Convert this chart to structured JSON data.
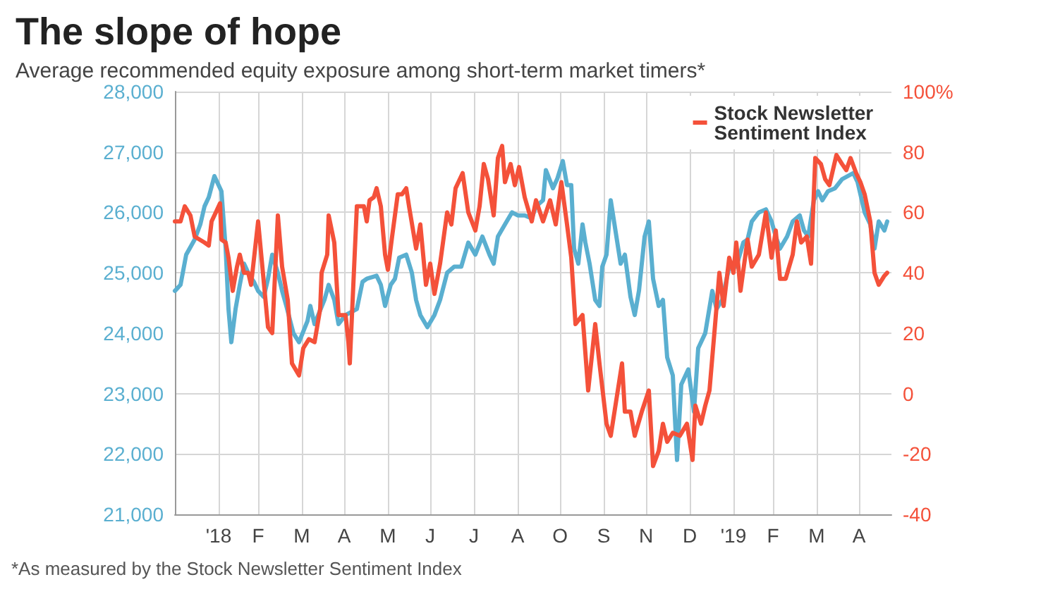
{
  "chart_data": {
    "type": "line",
    "title": "The slope of hope",
    "subtitle": "Average recommended equity exposure among short-term market timers*",
    "xlim": [
      "2018-01-01",
      "2019-05-24"
    ],
    "xticks": [
      {
        "value": "2018-02-01",
        "label": "'18"
      },
      {
        "value": "2018-03-01",
        "label": "F"
      },
      {
        "value": "2018-04-01",
        "label": "M"
      },
      {
        "value": "2018-05-01",
        "label": "A"
      },
      {
        "value": "2018-06-01",
        "label": "M"
      },
      {
        "value": "2018-07-01",
        "label": "J"
      },
      {
        "value": "2018-08-01",
        "label": "J"
      },
      {
        "value": "2018-09-01",
        "label": "A"
      },
      {
        "value": "2018-10-01",
        "label": "O"
      },
      {
        "value": "2018-11-01",
        "label": "S"
      },
      {
        "value": "2018-12-01",
        "label": "N"
      },
      {
        "value": "2019-01-01",
        "label": "D"
      },
      {
        "value": "2019-02-01",
        "label": "'19"
      },
      {
        "value": "2019-03-01",
        "label": "F"
      },
      {
        "value": "2019-04-01",
        "label": "M"
      },
      {
        "value": "2019-05-01",
        "label": "A"
      }
    ],
    "ylim": [
      21000,
      28000
    ],
    "yticks": [
      {
        "value": 21000,
        "label": "21,000"
      },
      {
        "value": 22000,
        "label": "22,000"
      },
      {
        "value": 23000,
        "label": "23,000"
      },
      {
        "value": 24000,
        "label": "24,000"
      },
      {
        "value": 25000,
        "label": "25,000"
      },
      {
        "value": 26000,
        "label": "26,000"
      },
      {
        "value": 27000,
        "label": "27,000"
      },
      {
        "value": 28000,
        "label": "28,000"
      }
    ],
    "y2lim": [
      -40,
      100
    ],
    "y2ticks": [
      -40,
      -20,
      0,
      20,
      40,
      60,
      80,
      {
        "value": 100,
        "label": "100%"
      }
    ],
    "grid": true,
    "legend": "top right",
    "marker": "none",
    "line_style": "solid",
    "annotations": [
      "*As measured by the Stock Newsletter Sentiment Index"
    ],
    "series": [
      {
        "color": "#5aafd0",
        "x": [
          "2018-01-01",
          "2018-01-05",
          "2018-01-09",
          "2018-01-15",
          "2018-01-19",
          "2018-01-22",
          "2018-01-25",
          "2018-01-29",
          "2018-02-03",
          "2018-02-06",
          "2018-02-08",
          "2018-02-10",
          "2018-02-13",
          "2018-02-16",
          "2018-02-19",
          "2018-02-23",
          "2018-02-26",
          "2018-03-01",
          "2018-03-05",
          "2018-03-08",
          "2018-03-11",
          "2018-03-15",
          "2018-03-18",
          "2018-03-21",
          "2018-03-26",
          "2018-03-30",
          "2018-04-05",
          "2018-04-07",
          "2018-04-10",
          "2018-04-17",
          "2018-04-20",
          "2018-04-24",
          "2018-04-27",
          "2018-05-02",
          "2018-05-10",
          "2018-05-14",
          "2018-05-17",
          "2018-05-24",
          "2018-05-27",
          "2018-05-30",
          "2018-06-03",
          "2018-06-06",
          "2018-06-09",
          "2018-06-14",
          "2018-06-18",
          "2018-06-21",
          "2018-06-24",
          "2018-06-29",
          "2018-07-04",
          "2018-07-08",
          "2018-07-13",
          "2018-07-18",
          "2018-07-23",
          "2018-07-28",
          "2018-08-02",
          "2018-08-07",
          "2018-08-12",
          "2018-08-15",
          "2018-08-18",
          "2018-08-23",
          "2018-08-28",
          "2018-09-01",
          "2018-09-06",
          "2018-09-11",
          "2018-09-14",
          "2018-09-19",
          "2018-09-21",
          "2018-09-26",
          "2018-09-29",
          "2018-10-03",
          "2018-10-06",
          "2018-10-09",
          "2018-10-11",
          "2018-10-14",
          "2018-10-17",
          "2018-10-19",
          "2018-10-22",
          "2018-10-26",
          "2018-10-29",
          "2018-10-31",
          "2018-11-03",
          "2018-11-06",
          "2018-11-10",
          "2018-11-13",
          "2018-11-16",
          "2018-11-20",
          "2018-11-23",
          "2018-11-26",
          "2018-11-30",
          "2018-12-03",
          "2018-12-06",
          "2018-12-10",
          "2018-12-13",
          "2018-12-16",
          "2018-12-20",
          "2018-12-23",
          "2018-12-26",
          "2018-12-31",
          "2019-01-04",
          "2019-01-07",
          "2019-01-12",
          "2019-01-17",
          "2019-01-20",
          "2019-01-24",
          "2019-01-29",
          "2019-02-03",
          "2019-02-08",
          "2019-02-11",
          "2019-02-14",
          "2019-02-19",
          "2019-02-24",
          "2019-02-28",
          "2019-03-03",
          "2019-03-06",
          "2019-03-11",
          "2019-03-15",
          "2019-03-20",
          "2019-03-23",
          "2019-03-26",
          "2019-03-30",
          "2019-04-02",
          "2019-04-05",
          "2019-04-09",
          "2019-04-14",
          "2019-04-19",
          "2019-04-27",
          "2019-04-30",
          "2019-05-05",
          "2019-05-09",
          "2019-05-12",
          "2019-05-15",
          "2019-05-19",
          "2019-05-21"
        ],
        "values": [
          24700,
          24800,
          25300,
          25550,
          25800,
          26100,
          26250,
          26600,
          26350,
          25400,
          24400,
          23850,
          24400,
          24800,
          25150,
          24950,
          24850,
          24700,
          24600,
          24900,
          25300,
          25000,
          24700,
          24450,
          24000,
          23850,
          24200,
          24450,
          24150,
          24550,
          24800,
          24550,
          24150,
          24300,
          24400,
          24850,
          24900,
          24950,
          24800,
          24450,
          24800,
          24900,
          25250,
          25300,
          25000,
          24550,
          24300,
          24100,
          24300,
          24550,
          25000,
          25100,
          25100,
          25500,
          25300,
          25600,
          25300,
          25150,
          25600,
          25800,
          26000,
          25950,
          25950,
          25900,
          26100,
          26200,
          26700,
          26400,
          26550,
          26850,
          26450,
          26450,
          25400,
          25150,
          25800,
          25500,
          25150,
          24550,
          24450,
          25100,
          25300,
          26200,
          25600,
          25150,
          25300,
          24600,
          24300,
          24700,
          25600,
          25850,
          24900,
          24450,
          24550,
          23600,
          23300,
          21900,
          23150,
          23400,
          22700,
          23750,
          24000,
          24700,
          24400,
          24550,
          25100,
          25100,
          25500,
          25550,
          25850,
          26000,
          26050,
          25850,
          25600,
          25400,
          25600,
          25850,
          25950,
          25700,
          25600,
          26200,
          26350,
          26200,
          26350,
          26400,
          26550,
          26650,
          26500,
          26000,
          25800,
          25400,
          25850,
          25700,
          25850
        ]
      },
      {
        "name": "Stock Newsletter Sentiment Index",
        "color": "#f4513a",
        "axis": "y2",
        "x": [
          "2018-01-01",
          "2018-01-05",
          "2018-01-08",
          "2018-01-12",
          "2018-01-15",
          "2018-01-22",
          "2018-01-25",
          "2018-01-27",
          "2018-01-30",
          "2018-02-02",
          "2018-02-03",
          "2018-02-06",
          "2018-02-08",
          "2018-02-11",
          "2018-02-14",
          "2018-02-16",
          "2018-02-19",
          "2018-02-22",
          "2018-02-24",
          "2018-03-01",
          "2018-03-04",
          "2018-03-08",
          "2018-03-11",
          "2018-03-15",
          "2018-03-18",
          "2018-03-22",
          "2018-03-25",
          "2018-03-30",
          "2018-04-02",
          "2018-04-06",
          "2018-04-10",
          "2018-04-14",
          "2018-04-15",
          "2018-04-19",
          "2018-04-20",
          "2018-04-24",
          "2018-04-27",
          "2018-05-02",
          "2018-05-04",
          "2018-05-05",
          "2018-05-10",
          "2018-05-15",
          "2018-05-17",
          "2018-05-19",
          "2018-05-22",
          "2018-05-24",
          "2018-05-27",
          "2018-05-30",
          "2018-06-01",
          "2018-06-04",
          "2018-06-08",
          "2018-06-11",
          "2018-06-14",
          "2018-06-16",
          "2018-06-21",
          "2018-06-24",
          "2018-06-28",
          "2018-07-01",
          "2018-07-04",
          "2018-07-08",
          "2018-07-13",
          "2018-07-16",
          "2018-07-19",
          "2018-07-24",
          "2018-07-28",
          "2018-08-02",
          "2018-08-05",
          "2018-08-08",
          "2018-08-11",
          "2018-08-15",
          "2018-08-18",
          "2018-08-21",
          "2018-08-23",
          "2018-08-27",
          "2018-08-30",
          "2018-09-02",
          "2018-09-06",
          "2018-09-11",
          "2018-09-14",
          "2018-09-19",
          "2018-09-24",
          "2018-09-28",
          "2018-10-02",
          "2018-10-06",
          "2018-10-09",
          "2018-10-12",
          "2018-10-17",
          "2018-10-21",
          "2018-10-26",
          "2018-10-29",
          "2018-11-03",
          "2018-11-06",
          "2018-11-10",
          "2018-11-14",
          "2018-11-16",
          "2018-11-20",
          "2018-11-23",
          "2018-11-28",
          "2018-12-03",
          "2018-12-06",
          "2018-12-10",
          "2018-12-13",
          "2018-12-16",
          "2018-12-20",
          "2018-12-25",
          "2018-12-30",
          "2019-01-03",
          "2019-01-05",
          "2019-01-09",
          "2019-01-12",
          "2019-01-15",
          "2019-01-19",
          "2019-01-22",
          "2019-01-25",
          "2019-01-29",
          "2019-02-01",
          "2019-02-03",
          "2019-02-06",
          "2019-02-11",
          "2019-02-14",
          "2019-02-19",
          "2019-02-24",
          "2019-02-28",
          "2019-03-03",
          "2019-03-06",
          "2019-03-10",
          "2019-03-15",
          "2019-03-18",
          "2019-03-21",
          "2019-03-25",
          "2019-03-28",
          "2019-03-31",
          "2019-04-04",
          "2019-04-07",
          "2019-04-10",
          "2019-04-15",
          "2019-04-19",
          "2019-04-22",
          "2019-04-25",
          "2019-04-29",
          "2019-05-02",
          "2019-05-05",
          "2019-05-09",
          "2019-05-12",
          "2019-05-15",
          "2019-05-19",
          "2019-05-21"
        ],
        "values": [
          57,
          57,
          62,
          59,
          52,
          50,
          49,
          57,
          60,
          63,
          51,
          50,
          45,
          34,
          42,
          46,
          40,
          40,
          36,
          57,
          42,
          22,
          20,
          59,
          42,
          31,
          10,
          6,
          15,
          18,
          17,
          28,
          40,
          46,
          59,
          50,
          26,
          26,
          17,
          10,
          62,
          62,
          57,
          64,
          65,
          68,
          62,
          46,
          41,
          52,
          66,
          66,
          68,
          62,
          48,
          56,
          36,
          43,
          33,
          43,
          60,
          56,
          68,
          73,
          60,
          54,
          62,
          76,
          71,
          59,
          78,
          82,
          70,
          76,
          69,
          75,
          65,
          57,
          64,
          57,
          64,
          56,
          70,
          56,
          45,
          23,
          26,
          1,
          23,
          10,
          -10,
          -14,
          -2,
          10,
          -6,
          -6,
          -14,
          -6,
          1,
          -24,
          -19,
          -10,
          -16,
          -13,
          -14,
          -10,
          -22,
          -4,
          -10,
          -4,
          1,
          23,
          40,
          29,
          45,
          40,
          50,
          34,
          51,
          42,
          46,
          60,
          45,
          54,
          38,
          38,
          46,
          57,
          50,
          52,
          43,
          78,
          76,
          71,
          69,
          79,
          76,
          74,
          78,
          73,
          70,
          66,
          57,
          40,
          36,
          39,
          40
        ]
      }
    ]
  }
}
